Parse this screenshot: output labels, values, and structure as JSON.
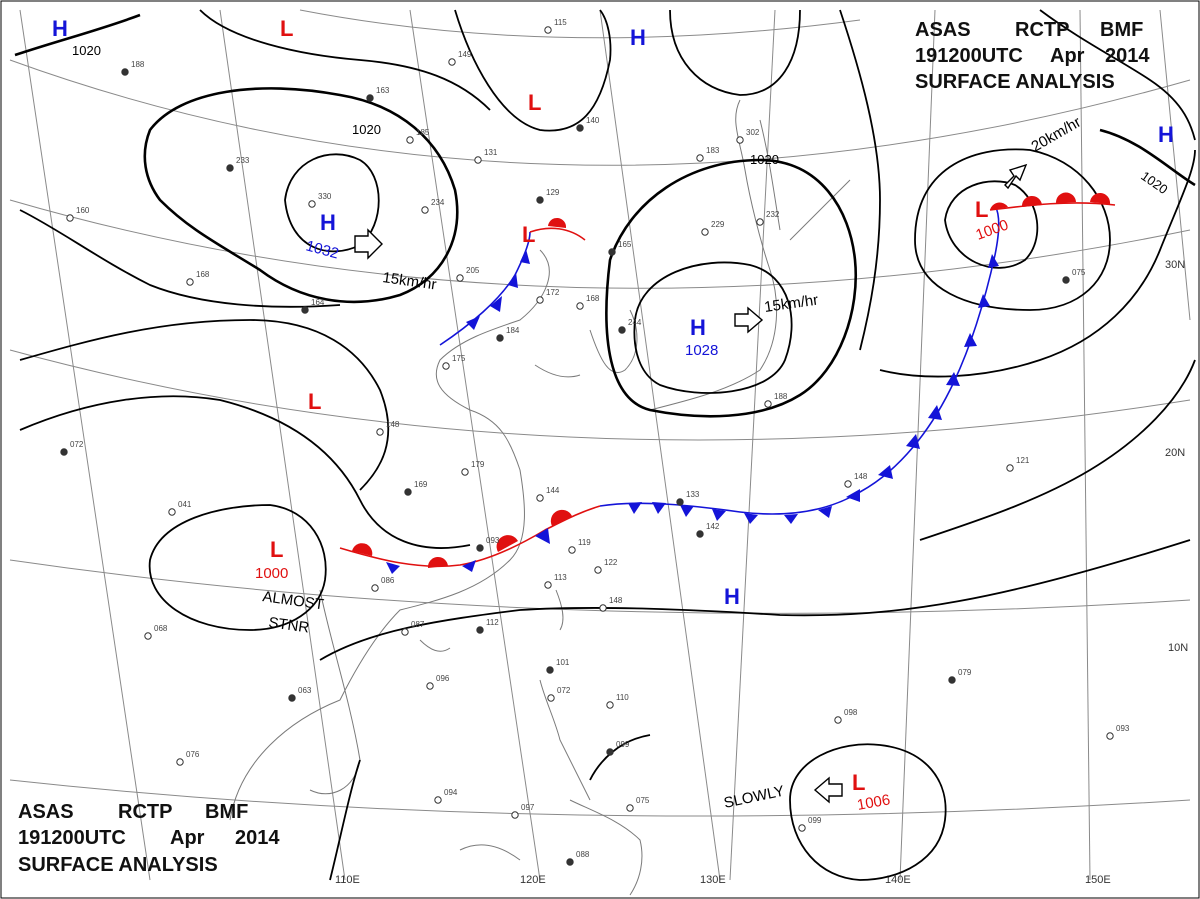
{
  "header_top": {
    "line1": [
      "ASAS",
      "RCTP",
      "BMF"
    ],
    "line2": [
      "191200UTC",
      "Apr",
      "2014"
    ],
    "line3": "SURFACE ANALYSIS"
  },
  "header_bottom": {
    "line1": [
      "ASAS",
      "RCTP",
      "BMF"
    ],
    "line2": [
      "191200UTC",
      "Apr",
      "2014"
    ],
    "line3": "SURFACE ANALYSIS"
  },
  "colors": {
    "high": "#1414d8",
    "low": "#e01010",
    "cold_front": "#1414d8",
    "warm_front": "#e01010",
    "isobar": "#000000",
    "graticule": "#8a8a8a",
    "coast": "#7a7a7a"
  },
  "lon_labels": [
    "110E",
    "120E",
    "130E",
    "140E",
    "150E"
  ],
  "lat_labels": [
    "30N",
    "20N",
    "10N"
  ],
  "isobar_labels": [
    "1020",
    "1020",
    "1020",
    "1020"
  ],
  "pressure_centers": [
    {
      "type": "H",
      "value": ""
    },
    {
      "type": "L",
      "value": ""
    },
    {
      "type": "L",
      "value": ""
    },
    {
      "type": "H",
      "value": ""
    },
    {
      "type": "H",
      "value": "1032"
    },
    {
      "type": "L",
      "value": ""
    },
    {
      "type": "H",
      "value": "1028"
    },
    {
      "type": "L",
      "value": "1000"
    },
    {
      "type": "H",
      "value": ""
    },
    {
      "type": "L",
      "value": "1000"
    },
    {
      "type": "L",
      "value": "1006"
    },
    {
      "type": "H",
      "value": ""
    },
    {
      "type": "L",
      "value": ""
    }
  ],
  "motion_labels": [
    "15km/hr",
    "15km/hr",
    "20km/hr",
    "SLOWLY"
  ],
  "annotation": {
    "line1": "ALMOST",
    "line2": "STNR"
  },
  "station_samples": [
    "188",
    "115",
    "149",
    "163",
    "185",
    "131",
    "140",
    "183",
    "302",
    "233",
    "330",
    "234",
    "129",
    "229",
    "232",
    "165",
    "205",
    "172",
    "184",
    "168",
    "175",
    "244",
    "188",
    "148",
    "169",
    "179",
    "144",
    "133",
    "148",
    "121",
    "093",
    "119",
    "122",
    "142",
    "086",
    "087",
    "112",
    "113",
    "148",
    "101",
    "072",
    "110",
    "099",
    "094",
    "096",
    "063",
    "076",
    "097",
    "088",
    "075",
    "099",
    "079",
    "093",
    "098",
    "075",
    "160",
    "168",
    "164",
    "041",
    "068",
    "072"
  ]
}
